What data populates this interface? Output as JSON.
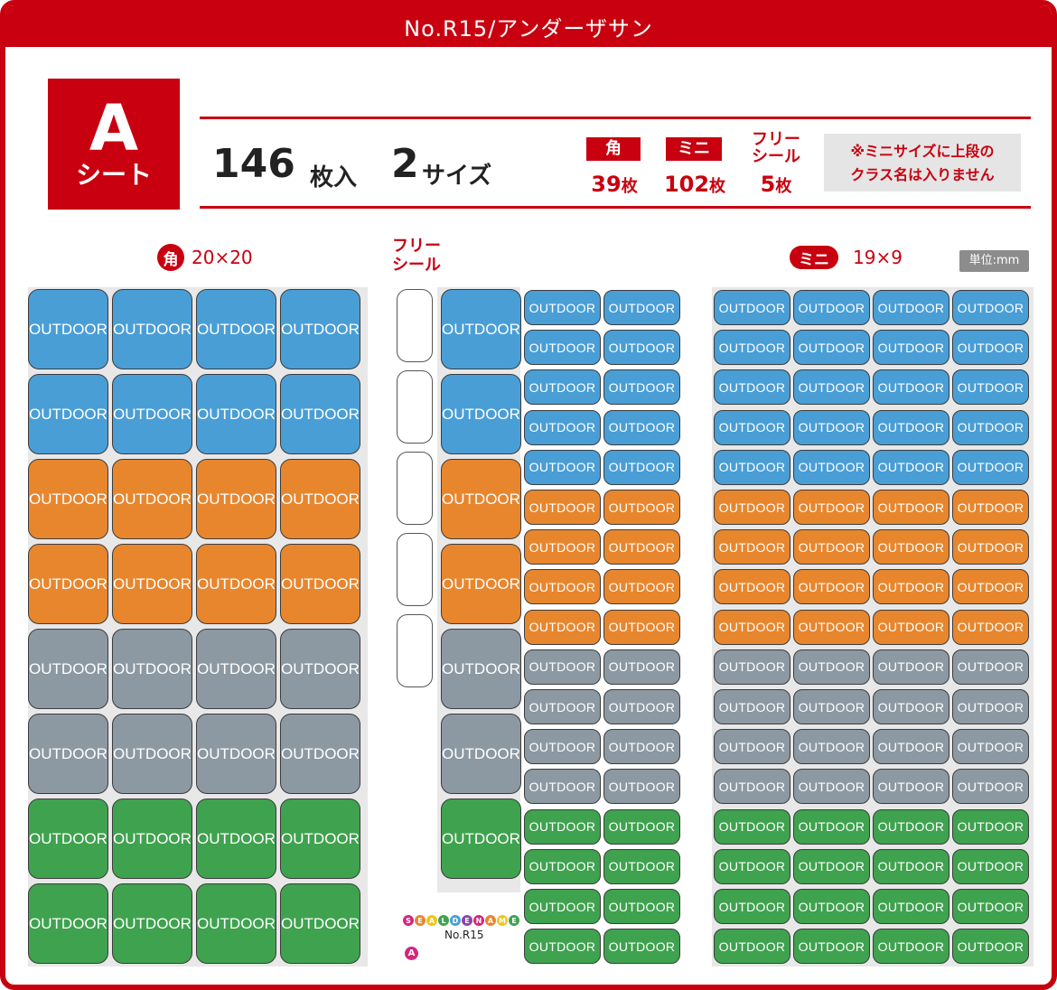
{
  "title": "No.R15/アンダーザサン",
  "sheet": {
    "letter": "A",
    "word": "シート"
  },
  "summary": {
    "total": "146",
    "total_unit": "枚入",
    "sizes": "2",
    "sizes_unit": "サイズ"
  },
  "counts": [
    {
      "label": "角",
      "value": "39",
      "unit": "枚"
    },
    {
      "label": "ミニ",
      "value": "102",
      "unit": "枚"
    },
    {
      "label": "フリー\nシール",
      "value": "5",
      "unit": "枚"
    }
  ],
  "note": [
    "※ミニサイズに上段の",
    "クラス名は入りません"
  ],
  "sections": {
    "square": {
      "badge": "角",
      "dims": "20×20"
    },
    "free": {
      "label_line1": "フリー",
      "label_line2": "シール"
    },
    "mini": {
      "badge": "ミニ",
      "dims": "19×9"
    },
    "unit": "単位:mm"
  },
  "sticker_text": "OUTDOOR",
  "colors": {
    "brand_red": "#c8000f",
    "blue": "#4a9ed6",
    "orange": "#e8862e",
    "gray": "#8c99a2",
    "green": "#3fa24f"
  },
  "square_grid": {
    "rows": [
      "blue",
      "blue",
      "orange",
      "orange",
      "gray",
      "gray",
      "green",
      "green"
    ],
    "cols": 4
  },
  "middle_square_rows": [
    "blue",
    "blue",
    "orange",
    "orange",
    "gray",
    "gray",
    "green"
  ],
  "middle_mini_rows": [
    "blue",
    "blue",
    "blue",
    "blue",
    "blue",
    "orange",
    "orange",
    "orange",
    "orange",
    "gray",
    "gray",
    "gray",
    "gray",
    "green",
    "green",
    "green",
    "green"
  ],
  "mini_grid": {
    "rows": [
      "blue",
      "blue",
      "blue",
      "blue",
      "blue",
      "orange",
      "orange",
      "orange",
      "orange",
      "gray",
      "gray",
      "gray",
      "gray",
      "green",
      "green",
      "green",
      "green"
    ],
    "cols": 4
  },
  "free_seals": 5,
  "brand": {
    "logo": "SEAL DE NAME",
    "code": "No.R15",
    "sheet": "A"
  }
}
